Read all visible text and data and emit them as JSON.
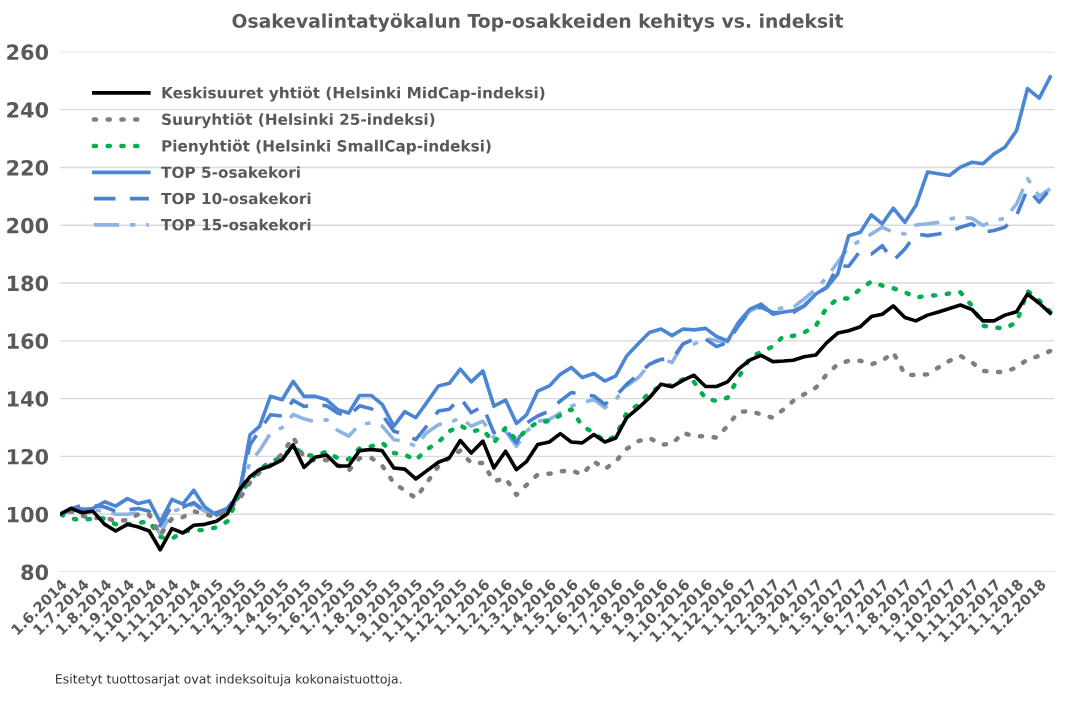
{
  "chart_data": {
    "type": "line",
    "title": "Osakevalintatyökalun Top-osakkeiden kehitys vs. indeksit",
    "x": [
      "2014-06-01",
      "2014-06-16",
      "2014-07-01",
      "2014-07-16",
      "2014-08-01",
      "2014-08-16",
      "2014-09-01",
      "2014-09-16",
      "2014-10-01",
      "2014-10-16",
      "2014-11-01",
      "2014-11-16",
      "2014-12-01",
      "2014-12-16",
      "2015-01-01",
      "2015-01-16",
      "2015-02-01",
      "2015-02-16",
      "2015-03-01",
      "2015-03-16",
      "2015-04-01",
      "2015-04-16",
      "2015-05-01",
      "2015-05-16",
      "2015-06-01",
      "2015-06-16",
      "2015-07-01",
      "2015-07-16",
      "2015-08-01",
      "2015-08-16",
      "2015-09-01",
      "2015-09-16",
      "2015-10-01",
      "2015-10-16",
      "2015-11-01",
      "2015-11-16",
      "2015-12-01",
      "2015-12-16",
      "2016-01-01",
      "2016-01-16",
      "2016-02-01",
      "2016-02-16",
      "2016-03-01",
      "2016-03-16",
      "2016-04-01",
      "2016-04-16",
      "2016-05-01",
      "2016-05-16",
      "2016-06-01",
      "2016-06-16",
      "2016-07-01",
      "2016-07-16",
      "2016-08-01",
      "2016-08-16",
      "2016-09-01",
      "2016-09-16",
      "2016-10-01",
      "2016-10-16",
      "2016-11-01",
      "2016-11-16",
      "2016-12-01",
      "2016-12-16",
      "2017-01-01",
      "2017-01-16",
      "2017-02-01",
      "2017-02-16",
      "2017-03-01",
      "2017-03-16",
      "2017-04-01",
      "2017-04-16",
      "2017-05-01",
      "2017-05-16",
      "2017-06-01",
      "2017-06-16",
      "2017-07-01",
      "2017-07-16",
      "2017-08-01",
      "2017-08-16",
      "2017-09-01",
      "2017-09-16",
      "2017-10-01",
      "2017-10-16",
      "2017-11-01",
      "2017-11-16",
      "2017-12-01",
      "2017-12-16",
      "2018-01-01",
      "2018-01-16",
      "2018-02-01",
      "2018-02-16"
    ],
    "series": [
      {
        "name": "Keskisuuret yhtiöt (Helsinki MidCap-indeksi)",
        "color": "#000000",
        "line_style": "solid",
        "values": [
          100,
          102,
          100.5,
          101,
          96.5,
          94.2,
          96.5,
          95.6,
          94.2,
          87.7,
          95,
          93.5,
          96.2,
          96.5,
          97.6,
          100.2,
          108.3,
          113,
          115.5,
          116.7,
          118.8,
          124,
          116.2,
          119.7,
          120.5,
          116.7,
          116.7,
          122,
          122.4,
          122,
          116,
          115.6,
          112.2,
          115,
          118,
          119.5,
          125.5,
          121.2,
          125.3,
          116,
          121.8,
          115.4,
          118.3,
          124.1,
          125,
          127.9,
          125,
          124.7,
          127.6,
          125,
          126.4,
          133.4,
          136.8,
          140.3,
          145,
          144.1,
          146.3,
          148.1,
          144.2,
          144.2,
          145.8,
          150.2,
          153.4,
          155,
          152.8,
          153,
          153.3,
          154.5,
          155.1,
          159.4,
          162.7,
          163.5,
          164.9,
          168.4,
          169.2,
          172.1,
          168.1,
          166.9,
          168.9,
          170,
          171.2,
          172.4,
          170.8,
          166.9,
          166.9,
          168.9,
          170.1,
          176.2,
          173,
          169.6
        ]
      },
      {
        "name": "Suuryhtiöt (Helsinki 25-indeksi)",
        "color": "#7f7f7f",
        "line_style": "dotted",
        "values": [
          100,
          101,
          99.5,
          98.5,
          99,
          97.5,
          98,
          100,
          100,
          92.7,
          98.5,
          99,
          101,
          100,
          99,
          101.5,
          105,
          111,
          114.5,
          117,
          120.9,
          126.7,
          119.7,
          118.5,
          118.8,
          117,
          115,
          119.4,
          119.5,
          116.8,
          110.8,
          108.2,
          105.6,
          110.8,
          116.6,
          119.5,
          122,
          117.7,
          117.7,
          111.4,
          112.5,
          106.7,
          110.2,
          113.7,
          114,
          114.8,
          115.2,
          113.7,
          118.3,
          115.6,
          118.3,
          122.6,
          125.3,
          126.4,
          124.1,
          124.3,
          128.2,
          127,
          127,
          126.5,
          130.5,
          135.4,
          135.7,
          134.6,
          133.4,
          136.3,
          139.2,
          141.5,
          143.8,
          148.4,
          151.9,
          153.1,
          153.1,
          151.9,
          153.1,
          156,
          148.4,
          148.1,
          148.4,
          150.8,
          153.1,
          154.8,
          152.5,
          149.6,
          149.2,
          149.2,
          150.8,
          153.6,
          154.8,
          156.5
        ]
      },
      {
        "name": "Pienyhtiöt (Helsinki SmallCap-indeksi)",
        "color": "#00b050",
        "line_style": "dotted",
        "values": [
          100,
          98.5,
          98,
          98.5,
          98.5,
          96.5,
          96.5,
          97,
          97.5,
          92.1,
          91.5,
          94,
          94.5,
          94.5,
          95.5,
          97.5,
          106.6,
          111.8,
          115.5,
          118.2,
          119.7,
          123.4,
          120.5,
          120.2,
          121.7,
          119.4,
          119,
          122.8,
          123.5,
          124.7,
          121.2,
          120.6,
          118.7,
          122.4,
          124.9,
          128.7,
          130.7,
          128.7,
          129.3,
          124.7,
          129.9,
          125.6,
          129.3,
          131.9,
          132.2,
          134.2,
          136.3,
          130.5,
          128.2,
          125.3,
          127,
          135.1,
          138,
          142.1,
          144.4,
          144.6,
          146.7,
          145.8,
          140,
          139.2,
          140.3,
          147.3,
          154.2,
          156.2,
          158,
          161.7,
          161.7,
          162.9,
          165.2,
          171.6,
          174.5,
          174.7,
          177.9,
          180.5,
          179.1,
          178.2,
          176.8,
          175,
          175.6,
          175.8,
          176.4,
          176.8,
          172.1,
          165.2,
          164.6,
          164.3,
          166.4,
          177.3,
          173.9,
          170.1
        ]
      },
      {
        "name": "TOP 5-osakekori",
        "color": "#4a86d4",
        "line_style": "solid",
        "values": [
          100,
          102,
          101.6,
          102,
          104.3,
          102.8,
          105.4,
          103.7,
          104.6,
          97.3,
          105.1,
          103.5,
          108.3,
          102.5,
          99.7,
          102,
          106.6,
          127.5,
          130.4,
          140.8,
          139.6,
          146,
          140.8,
          140.8,
          139.6,
          136.2,
          135,
          141.1,
          141.1,
          138,
          130.5,
          135.5,
          133.4,
          138.6,
          144.4,
          145.3,
          150.2,
          145.8,
          149.6,
          137.4,
          139.5,
          131.4,
          134.5,
          142.6,
          144.4,
          148.4,
          150.8,
          147.3,
          148.7,
          146.1,
          147.9,
          154.8,
          159.1,
          162.9,
          164.1,
          161.8,
          164.1,
          163.8,
          164.3,
          161.5,
          160,
          166.4,
          171,
          172.7,
          169.2,
          170,
          170.4,
          172.1,
          176.2,
          178.5,
          183.1,
          196.4,
          197.6,
          203.6,
          200.5,
          205.9,
          201,
          206.8,
          218.4,
          217.8,
          217.2,
          220.1,
          221.8,
          221.3,
          224.7,
          227,
          232.8,
          247.3,
          244,
          251.3
        ]
      },
      {
        "name": "TOP 10-osakekori",
        "color": "#4a80d0",
        "line_style": "dashed",
        "values": [
          100,
          102,
          103,
          103,
          102.5,
          101,
          101.5,
          102,
          101,
          96,
          103,
          102.5,
          104,
          101,
          100.5,
          102,
          107.5,
          124,
          129,
          134.4,
          134,
          139.4,
          137.3,
          138,
          137.5,
          135,
          134,
          137.5,
          136.5,
          134.5,
          128.7,
          127.6,
          125.8,
          130.5,
          135.7,
          136.3,
          140.3,
          135.1,
          137.4,
          128.2,
          129.3,
          124.7,
          131.6,
          134,
          135.7,
          139.2,
          142.1,
          141.5,
          140.9,
          138,
          140.9,
          145,
          148.4,
          151.9,
          153.6,
          153.6,
          158.9,
          160.6,
          160.6,
          158,
          159.4,
          165.2,
          170.4,
          171.6,
          169.8,
          169.8,
          169.8,
          172.1,
          176.2,
          178.5,
          186,
          185.8,
          191.2,
          190,
          192.9,
          187.7,
          191.8,
          197,
          196.4,
          197,
          197.8,
          199.3,
          200.5,
          197.6,
          198.2,
          199.3,
          203.4,
          212.6,
          208,
          212.6
        ]
      },
      {
        "name": "TOP 15-osakekori",
        "color": "#8db4e2",
        "line_style": "dashdot",
        "values": [
          100,
          101,
          102,
          101.5,
          101,
          100,
          100,
          100.5,
          99.5,
          93,
          101,
          102,
          103.5,
          101,
          100,
          101,
          106,
          118,
          122,
          128,
          130,
          134.5,
          133,
          132,
          132.7,
          129,
          127,
          131,
          131.6,
          130.5,
          125.8,
          125.3,
          123.5,
          128.2,
          131,
          131.6,
          133.4,
          130.5,
          132.2,
          126.4,
          128.7,
          123.5,
          128.7,
          132.2,
          132.8,
          135.1,
          137.4,
          138.6,
          139.7,
          136.8,
          139.7,
          144.4,
          147.3,
          151.9,
          153.9,
          152.5,
          158.9,
          158.9,
          160.8,
          160,
          159.7,
          165.8,
          170.4,
          172.1,
          170.4,
          171.6,
          171.6,
          174.5,
          177.9,
          182,
          187.2,
          192.4,
          194.7,
          197,
          199.3,
          197.6,
          197,
          200.1,
          200.5,
          201,
          202.2,
          202.8,
          202.4,
          199.9,
          201.6,
          202.4,
          207.4,
          216.1,
          210,
          212.6
        ]
      }
    ],
    "xlim": [
      "2014-06-01",
      "2018-02-22"
    ],
    "xticks": [
      {
        "value": "2014-06-01",
        "label": "1.6.2014"
      },
      {
        "value": "2014-07-01",
        "label": "1.7.2014"
      },
      {
        "value": "2014-08-01",
        "label": "1.8.2014"
      },
      {
        "value": "2014-09-01",
        "label": "1.9.2014"
      },
      {
        "value": "2014-10-01",
        "label": "1.10.2014"
      },
      {
        "value": "2014-11-01",
        "label": "1.11.2014"
      },
      {
        "value": "2014-12-01",
        "label": "1.12.2014"
      },
      {
        "value": "2015-01-01",
        "label": "1.1.2015"
      },
      {
        "value": "2015-02-01",
        "label": "1.2.2015"
      },
      {
        "value": "2015-03-01",
        "label": "1.3.2015"
      },
      {
        "value": "2015-04-01",
        "label": "1.4.2015"
      },
      {
        "value": "2015-05-01",
        "label": "1.5.2015"
      },
      {
        "value": "2015-06-01",
        "label": "1.6.2015"
      },
      {
        "value": "2015-07-01",
        "label": "1.7.2015"
      },
      {
        "value": "2015-08-01",
        "label": "1.8.2015"
      },
      {
        "value": "2015-09-01",
        "label": "1.9.2015"
      },
      {
        "value": "2015-10-01",
        "label": "1.10.2015"
      },
      {
        "value": "2015-11-01",
        "label": "1.11.2015"
      },
      {
        "value": "2015-12-01",
        "label": "1.12.2015"
      },
      {
        "value": "2016-01-01",
        "label": "1.1.2016"
      },
      {
        "value": "2016-02-01",
        "label": "1.2.2016"
      },
      {
        "value": "2016-03-01",
        "label": "1.3.2016"
      },
      {
        "value": "2016-04-01",
        "label": "1.4.2016"
      },
      {
        "value": "2016-05-01",
        "label": "1.5.2016"
      },
      {
        "value": "2016-06-01",
        "label": "1.6.2016"
      },
      {
        "value": "2016-07-01",
        "label": "1.7.2016"
      },
      {
        "value": "2016-08-01",
        "label": "1.8.2016"
      },
      {
        "value": "2016-09-01",
        "label": "1.9.2016"
      },
      {
        "value": "2016-10-01",
        "label": "1.10.2016"
      },
      {
        "value": "2016-11-01",
        "label": "1.11.2016"
      },
      {
        "value": "2016-12-01",
        "label": "1.12.2016"
      },
      {
        "value": "2017-01-01",
        "label": "1.1.2017"
      },
      {
        "value": "2017-02-01",
        "label": "1.2.2017"
      },
      {
        "value": "2017-03-01",
        "label": "1.3.2017"
      },
      {
        "value": "2017-04-01",
        "label": "1.4.2017"
      },
      {
        "value": "2017-05-01",
        "label": "1.5.2017"
      },
      {
        "value": "2017-06-01",
        "label": "1.6.2017"
      },
      {
        "value": "2017-07-01",
        "label": "1.7.2017"
      },
      {
        "value": "2017-08-01",
        "label": "1.8.2017"
      },
      {
        "value": "2017-09-01",
        "label": "1.9.2017"
      },
      {
        "value": "2017-10-01",
        "label": "1.10.2017"
      },
      {
        "value": "2017-11-01",
        "label": "1.11.2017"
      },
      {
        "value": "2017-12-01",
        "label": "1.12.2017"
      },
      {
        "value": "2018-01-01",
        "label": "1.1.2018"
      },
      {
        "value": "2018-02-01",
        "label": "1.2.2018"
      }
    ],
    "ylim": [
      80,
      260
    ],
    "yticks": [
      80,
      100,
      120,
      140,
      160,
      180,
      200,
      220,
      240,
      260
    ],
    "grid": "y",
    "legend": "top left",
    "marker": "none",
    "annotations": [
      "Esitetyt tuottosarjat ovat indeksoituja kokonaistuottoja."
    ]
  }
}
